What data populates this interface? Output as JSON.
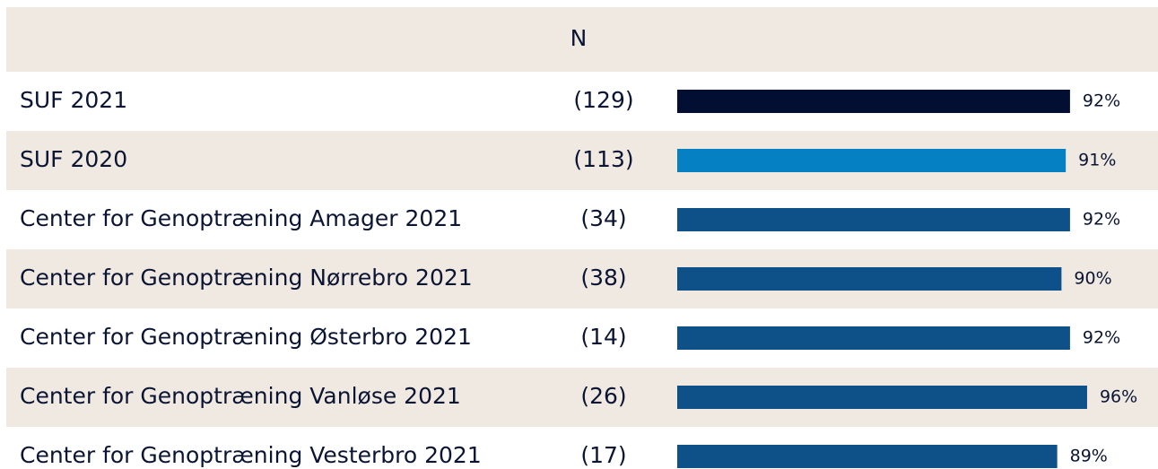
{
  "chart_data": {
    "type": "bar",
    "column_header": "N",
    "categories": [
      "SUF 2021",
      "SUF 2020",
      "Center for Genoptræning Amager 2021",
      "Center for Genoptræning Nørrebro 2021",
      "Center for Genoptræning Østerbro 2021",
      "Center for Genoptræning Vanløse 2021",
      "Center for Genoptræning Vesterbro 2021"
    ],
    "n_labels": [
      "(129)",
      "(113)",
      "(34)",
      "(38)",
      "(14)",
      "(26)",
      "(17)"
    ],
    "values": [
      92,
      91,
      92,
      90,
      92,
      96,
      89
    ],
    "value_labels": [
      "92%",
      "91%",
      "92%",
      "90%",
      "92%",
      "96%",
      "89%"
    ],
    "colors": [
      "#020f33",
      "#0580c2",
      "#0e5189",
      "#0e5189",
      "#0e5189",
      "#0e5189",
      "#0e5189"
    ]
  }
}
